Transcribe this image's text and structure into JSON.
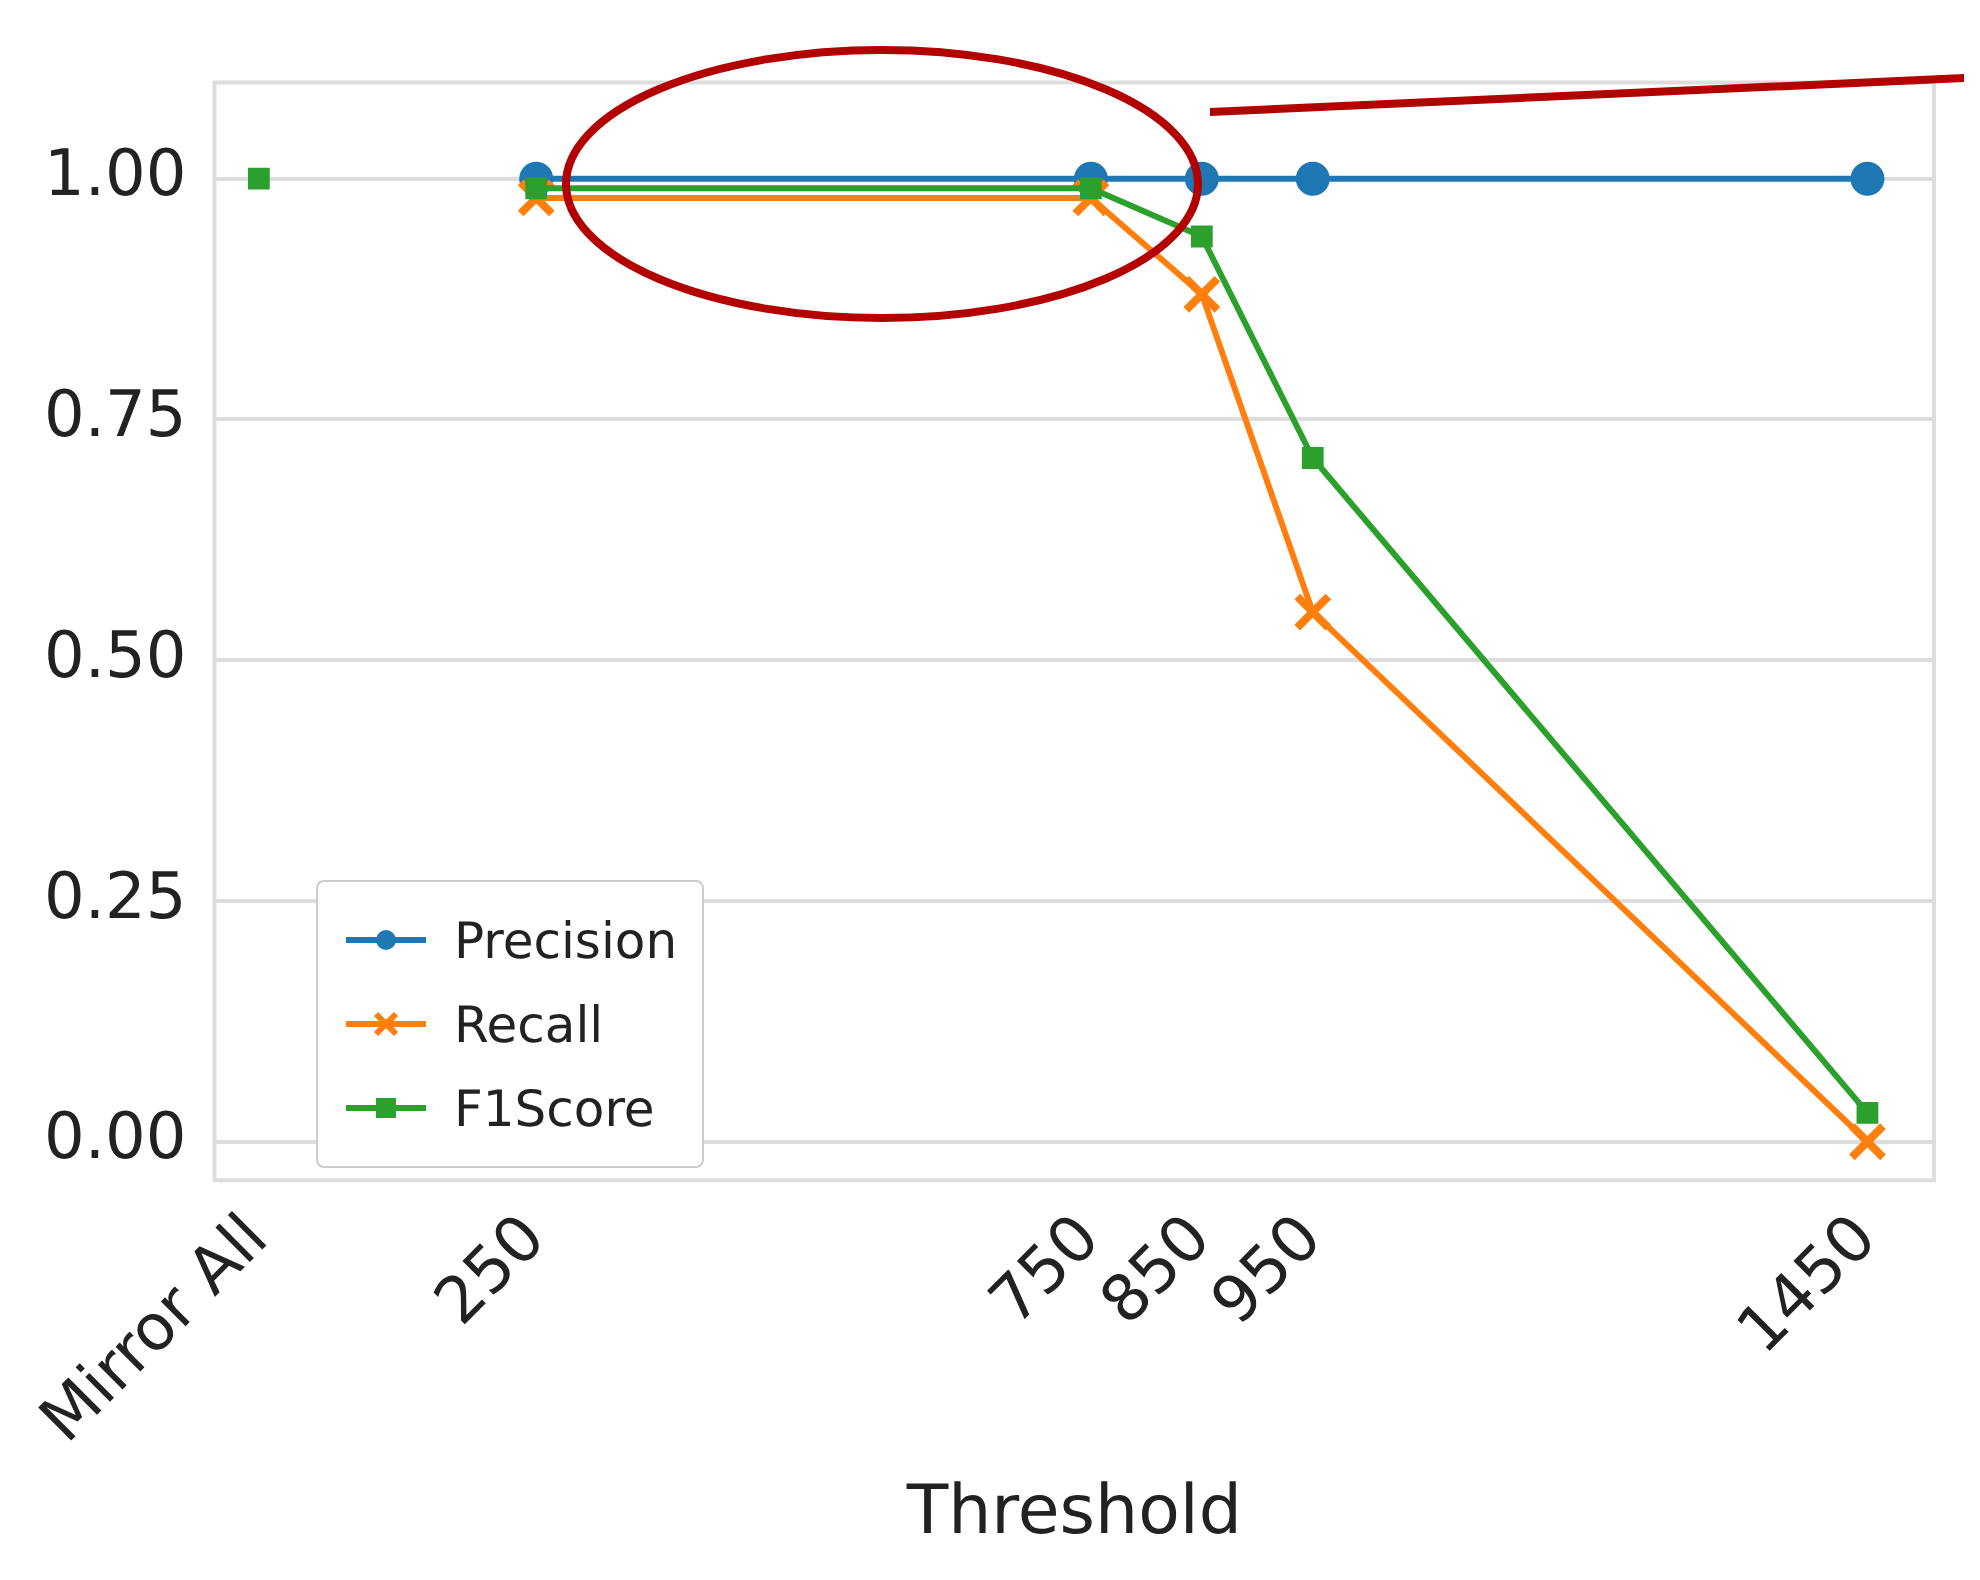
{
  "chart_data": {
    "type": "line",
    "xlabel": "Threshold",
    "xlim": [
      -40,
      1510
    ],
    "xticks": [
      {
        "value": 0,
        "label": "Mirror All"
      },
      250,
      750,
      850,
      950,
      1450
    ],
    "ylim": [
      -0.04,
      1.1
    ],
    "yticks": [
      {
        "value": 0,
        "label": "0.00"
      },
      {
        "value": 0.25,
        "label": "0.25"
      },
      {
        "value": 0.5,
        "label": "0.50"
      },
      {
        "value": 0.75,
        "label": "0.75"
      },
      {
        "value": 1,
        "label": "1.00"
      }
    ],
    "grid": "y",
    "legend": "bottom left",
    "series": [
      {
        "name": "Precision",
        "color": "#1f77b4",
        "marker": "circle",
        "x": [
          250,
          750,
          850,
          950,
          1450
        ],
        "values": [
          1.0,
          1.0,
          1.0,
          1.0,
          1.0
        ]
      },
      {
        "name": "Recall",
        "color": "#ff7f0e",
        "marker": "cross",
        "x": [
          250,
          750,
          850,
          950,
          1450
        ],
        "values": [
          0.98,
          0.98,
          0.88,
          0.55,
          0.0
        ]
      },
      {
        "name": "F1Score",
        "color": "#2ca02c",
        "marker": "square",
        "x": [
          250,
          750,
          850,
          950,
          1450
        ],
        "values": [
          0.99,
          0.99,
          0.94,
          0.71,
          0.03
        ]
      },
      {
        "type": "scatter",
        "color": "#2ca02c",
        "marker": "square",
        "x": [
          0
        ],
        "values": [
          1.0
        ]
      }
    ]
  }
}
